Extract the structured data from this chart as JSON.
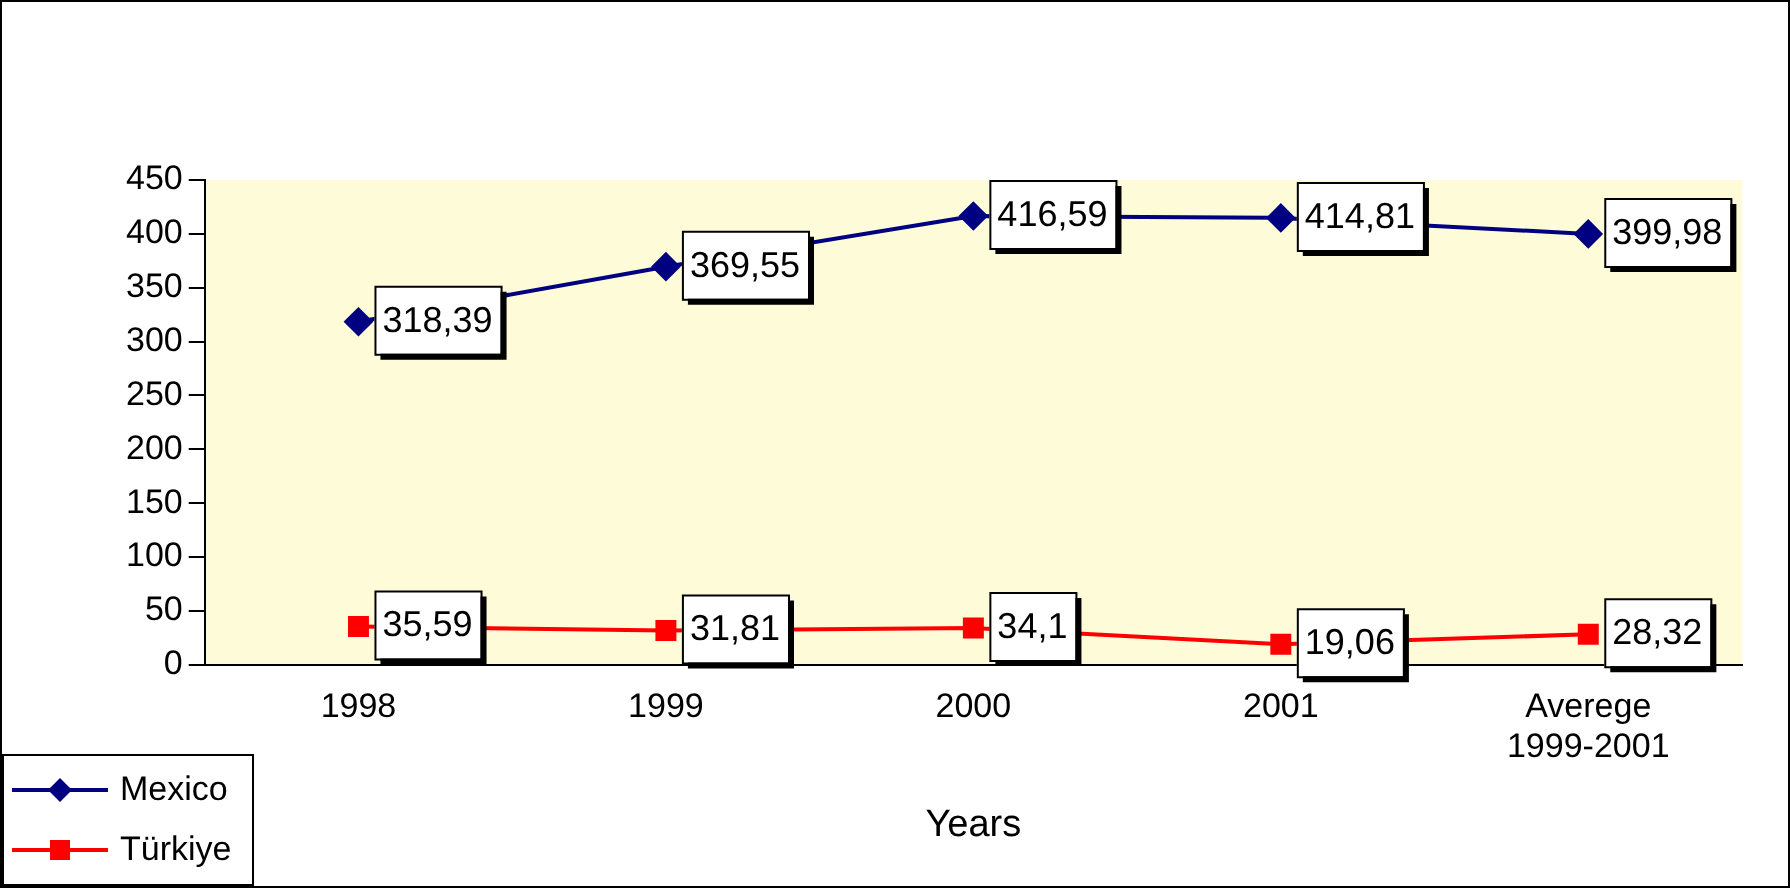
{
  "chart_data": {
    "type": "line",
    "xlabel": "Years",
    "categories": [
      "1998",
      "1999",
      "2000",
      "2001",
      "Averege 1999-2001"
    ],
    "series": [
      {
        "name": "Mexico",
        "color": "#000080",
        "marker": "diamond",
        "values": [
          318.39,
          369.55,
          416.59,
          414.81,
          399.98
        ],
        "value_labels": [
          "318,39",
          "369,55",
          "416,59",
          "414,81",
          "399,98"
        ]
      },
      {
        "name": "Türkiye",
        "color": "#ff0000",
        "marker": "square",
        "values": [
          35.59,
          31.81,
          34.1,
          19.06,
          28.32
        ],
        "value_labels": [
          "35,59",
          "31,81",
          "34,1",
          "19,06",
          "28,32"
        ]
      }
    ],
    "ylim": [
      0,
      450
    ],
    "yticks": [
      0,
      50,
      100,
      150,
      200,
      250,
      300,
      350,
      400,
      450
    ],
    "grid": false,
    "legend": "bottom left",
    "line_style": "solid"
  }
}
